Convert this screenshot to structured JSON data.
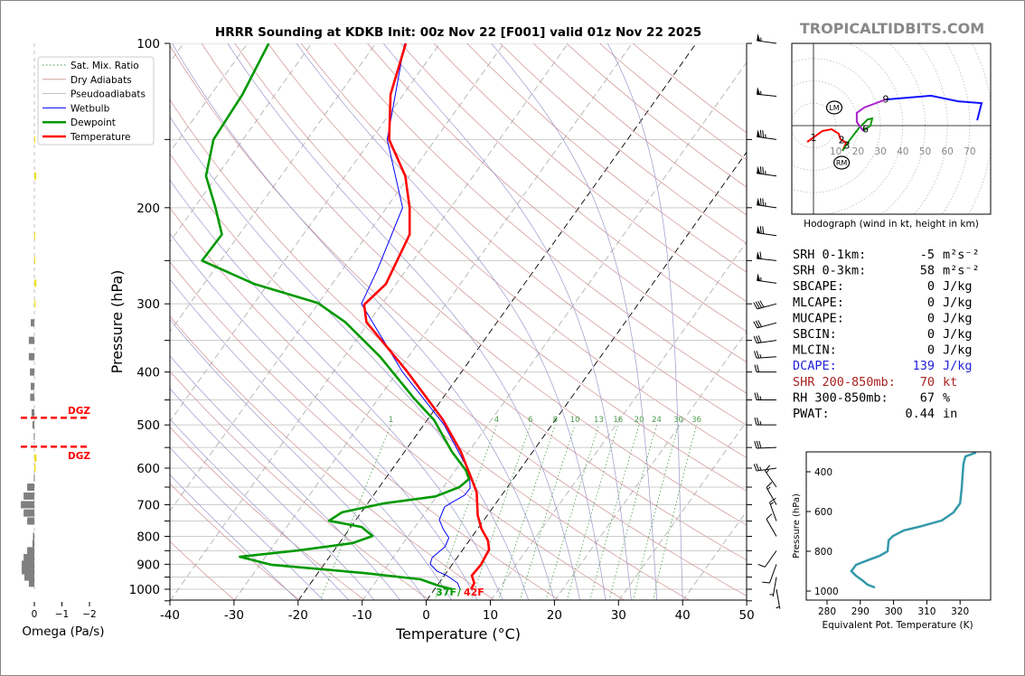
{
  "title": "HRRR Sounding at KDKB Init: 00z Nov 22 [F001] valid 01z Nov 22 2025",
  "watermark": "TROPICALTIDBITS.COM",
  "colors": {
    "temperature": "#ff0000",
    "dewpoint": "#009900",
    "wetbulb": "#0000ff",
    "dry_adiabat": "#d09090",
    "pseudoadiabat": "#9999cc",
    "mixing_ratio": "#4a9a4a",
    "thetae": "#3399aa",
    "dgz": "#ff0000",
    "omega_sink": "#808080",
    "omega_rise": "#f0e020",
    "dcape": "#2222dd",
    "shr": "#aa2222"
  },
  "legend": [
    {
      "label": "Sat. Mix. Ratio",
      "style": "dotted-green"
    },
    {
      "label": "Dry Adiabats",
      "style": "thin-red"
    },
    {
      "label": "Pseudoadiabats",
      "style": "thin-gray"
    },
    {
      "label": "Wetbulb",
      "style": "thin-blue"
    },
    {
      "label": "Dewpoint",
      "style": "thick-green"
    },
    {
      "label": "Temperature",
      "style": "thick-red"
    }
  ],
  "surface_labels": {
    "dewpoint": "37F",
    "temperature": "42F",
    "separator": "/"
  },
  "chart_data": [
    {
      "name": "skew-t",
      "type": "line",
      "title": "HRRR Sounding at KDKB Init: 00z Nov 22 [F001] valid 01z Nov 22 2025",
      "xlabel": "Temperature (°C)",
      "ylabel": "Pressure (hPa)",
      "xlim": [
        -40,
        50
      ],
      "ylim": [
        1050,
        100
      ],
      "yscale": "log",
      "xticks": [
        -40,
        -30,
        -20,
        -10,
        0,
        10,
        20,
        30,
        40,
        50
      ],
      "yticks": [
        100,
        200,
        300,
        400,
        500,
        600,
        700,
        800,
        900,
        1000
      ],
      "mixing_ratio_labels": [
        "1",
        "4",
        "6",
        "8",
        "10",
        "13",
        "16",
        "20",
        "24",
        "30",
        "36"
      ],
      "mixing_ratio_values": [
        1,
        4,
        6,
        8,
        10,
        13,
        16,
        20,
        24,
        30,
        36
      ],
      "highlight_isotherms": [
        -20,
        0
      ],
      "legend_position": "top-left",
      "series": [
        {
          "name": "Temperature",
          "points": [
            [
              100,
              -65.3
            ],
            [
              124,
              -62
            ],
            [
              150,
              -57.2
            ],
            [
              175,
              -50.6
            ],
            [
              200,
              -46.4
            ],
            [
              224,
              -43.4
            ],
            [
              276,
              -41.6
            ],
            [
              301,
              -42.7
            ],
            [
              324,
              -40.4
            ],
            [
              398,
              -28.7
            ],
            [
              490,
              -17.5
            ],
            [
              560,
              -11.2
            ],
            [
              628,
              -6.5
            ],
            [
              665,
              -4.2
            ],
            [
              732,
              -1.5
            ],
            [
              775,
              0.6
            ],
            [
              814,
              2.9
            ],
            [
              846,
              4.1
            ],
            [
              902,
              4.5
            ],
            [
              944,
              4.3
            ],
            [
              974,
              5.5
            ],
            [
              1000,
              5.7
            ]
          ]
        },
        {
          "name": "Dewpoint",
          "points": [
            [
              100,
              -86.7
            ],
            [
              124,
              -85.1
            ],
            [
              150,
              -84.6
            ],
            [
              175,
              -81.7
            ],
            [
              200,
              -76.7
            ],
            [
              224,
              -72.7
            ],
            [
              250,
              -72.9
            ],
            [
              276,
              -62.1
            ],
            [
              299,
              -50.1
            ],
            [
              324,
              -43.7
            ],
            [
              375,
              -34.4
            ],
            [
              446,
              -24.6
            ],
            [
              490,
              -18.9
            ],
            [
              560,
              -12.6
            ],
            [
              605,
              -8.4
            ],
            [
              628,
              -6.9
            ],
            [
              650,
              -7.5
            ],
            [
              676,
              -10.2
            ],
            [
              696,
              -17.4
            ],
            [
              723,
              -23
            ],
            [
              749,
              -24.1
            ],
            [
              769,
              -18.3
            ],
            [
              799,
              -15.6
            ],
            [
              823,
              -17.9
            ],
            [
              849,
              -25.6
            ],
            [
              872,
              -34
            ],
            [
              902,
              -28.2
            ],
            [
              934,
              -12.8
            ],
            [
              959,
              -3.3
            ],
            [
              985,
              0.2
            ],
            [
              1000,
              2.8
            ]
          ]
        },
        {
          "name": "Wetbulb",
          "points": [
            [
              100,
              -65.5
            ],
            [
              150,
              -57.5
            ],
            [
              200,
              -47.5
            ],
            [
              260,
              -44.5
            ],
            [
              300,
              -43.2
            ],
            [
              400,
              -29.2
            ],
            [
              500,
              -16.8
            ],
            [
              600,
              -8.4
            ],
            [
              628,
              -6.8
            ],
            [
              653,
              -5.7
            ],
            [
              673,
              -5.8
            ],
            [
              694,
              -7
            ],
            [
              707,
              -7.6
            ],
            [
              746,
              -7
            ],
            [
              775,
              -5.4
            ],
            [
              805,
              -3.5
            ],
            [
              836,
              -3.1
            ],
            [
              875,
              -3.9
            ],
            [
              899,
              -3.5
            ],
            [
              927,
              -1.6
            ],
            [
              944,
              0.4
            ],
            [
              974,
              2.9
            ],
            [
              1000,
              4
            ]
          ]
        }
      ],
      "wind_barbs": [
        {
          "p": 100,
          "dir": 278,
          "kt": 55
        },
        {
          "p": 125,
          "dir": 276,
          "kt": 55
        },
        {
          "p": 150,
          "dir": 278,
          "kt": 75
        },
        {
          "p": 175,
          "dir": 278,
          "kt": 75
        },
        {
          "p": 200,
          "dir": 278,
          "kt": 75
        },
        {
          "p": 225,
          "dir": 278,
          "kt": 70
        },
        {
          "p": 250,
          "dir": 276,
          "kt": 60
        },
        {
          "p": 275,
          "dir": 278,
          "kt": 55
        },
        {
          "p": 300,
          "dir": 255,
          "kt": 40
        },
        {
          "p": 325,
          "dir": 255,
          "kt": 30
        },
        {
          "p": 350,
          "dir": 262,
          "kt": 30
        },
        {
          "p": 375,
          "dir": 266,
          "kt": 25
        },
        {
          "p": 400,
          "dir": 270,
          "kt": 20
        },
        {
          "p": 450,
          "dir": 270,
          "kt": 25
        },
        {
          "p": 500,
          "dir": 270,
          "kt": 25
        },
        {
          "p": 550,
          "dir": 268,
          "kt": 30
        },
        {
          "p": 600,
          "dir": 262,
          "kt": 25
        },
        {
          "p": 650,
          "dir": 325,
          "kt": 15
        },
        {
          "p": 700,
          "dir": 330,
          "kt": 15
        },
        {
          "p": 750,
          "dir": 340,
          "kt": 15
        },
        {
          "p": 800,
          "dir": 330,
          "kt": 10
        },
        {
          "p": 850,
          "dir": 215,
          "kt": 10
        },
        {
          "p": 900,
          "dir": 200,
          "kt": 10
        },
        {
          "p": 950,
          "dir": 190,
          "kt": 5
        },
        {
          "p": 1000,
          "dir": 170,
          "kt": 5
        }
      ]
    },
    {
      "name": "hodograph",
      "type": "line",
      "xlabel": "Hodograph (wind in kt, height in km)",
      "ring_labels": [
        "10",
        "20",
        "30",
        "40",
        "50",
        "60",
        "70"
      ],
      "ring_values": [
        10,
        20,
        30,
        40,
        50,
        60,
        70,
        80
      ],
      "series": [
        {
          "name": "0-3km",
          "color": "#ff0000",
          "points": [
            [
              -2.8,
              -7.3
            ],
            [
              0,
              -5.3
            ],
            [
              4,
              -2.4
            ],
            [
              8.1,
              -1.6
            ],
            [
              11.3,
              -3.6
            ],
            [
              12.1,
              -6.1
            ],
            [
              14.6,
              -7.7
            ],
            [
              13,
              -11.3
            ]
          ]
        },
        {
          "name": "3-6km",
          "color": "#119911",
          "points": [
            [
              13,
              -11.3
            ],
            [
              16.2,
              -6.5
            ],
            [
              20.2,
              -1.2
            ],
            [
              24.3,
              2.8
            ],
            [
              26.3,
              3.2
            ],
            [
              25.5,
              0
            ],
            [
              22.3,
              -2.4
            ]
          ]
        },
        {
          "name": "6-9km",
          "color": "#aa22cc",
          "points": [
            [
              22.3,
              -2.4
            ],
            [
              19.4,
              1.6
            ],
            [
              19.4,
              5.7
            ],
            [
              22.7,
              8.1
            ],
            [
              32.4,
              11.7
            ]
          ]
        },
        {
          "name": "9+km",
          "color": "#1111ff",
          "points": [
            [
              32.4,
              11.7
            ],
            [
              52.6,
              13.4
            ],
            [
              64.8,
              10.9
            ],
            [
              75.3,
              10.1
            ],
            [
              73.3,
              2.4
            ]
          ]
        }
      ],
      "height_labels": [
        {
          "text": "1",
          "u": 0,
          "v": -5.3
        },
        {
          "text": "2",
          "u": 12.6,
          "v": -6.3
        },
        {
          "text": "3",
          "u": 15,
          "v": -8.8
        },
        {
          "text": "6",
          "u": 23.3,
          "v": -1.5
        },
        {
          "text": "9",
          "u": 32.4,
          "v": 11.9
        }
      ],
      "storm_motion": [
        {
          "text": "LM",
          "u": 9.3,
          "v": 8.1
        },
        {
          "text": "RM",
          "u": 12.6,
          "v": -16.6
        }
      ]
    },
    {
      "name": "theta-e",
      "type": "line",
      "xlabel": "Equivalent Pot. Temperature (K)",
      "ylabel": "Pressure (hPa)",
      "xlim": [
        273.7,
        329.2
      ],
      "ylim": [
        1045,
        300
      ],
      "xticks": [
        280,
        290,
        300,
        310,
        320
      ],
      "yticks": [
        400,
        600,
        800,
        1000
      ],
      "series": [
        {
          "name": "Theta-E",
          "points": [
            [
              303,
              324.8
            ],
            [
              323,
              321.6
            ],
            [
              359,
              321
            ],
            [
              482,
              320.5
            ],
            [
              559,
              320
            ],
            [
              605,
              318
            ],
            [
              645,
              314.5
            ],
            [
              673,
              308.5
            ],
            [
              695,
              303.1
            ],
            [
              723,
              299.8
            ],
            [
              745,
              298.5
            ],
            [
              800,
              298.2
            ],
            [
              823,
              295.8
            ],
            [
              845,
              292.2
            ],
            [
              868,
              288.7
            ],
            [
              900,
              287.3
            ],
            [
              923,
              288.7
            ],
            [
              950,
              290.9
            ],
            [
              968,
              292.2
            ],
            [
              982,
              294.4
            ]
          ]
        }
      ]
    },
    {
      "name": "omega",
      "type": "bar",
      "xlabel": "Omega (Pa/s)",
      "xticks": [
        0,
        -1,
        -2
      ],
      "xtick_labels": [
        "0",
        "−1",
        "−2"
      ],
      "dgz_label": "DGZ",
      "dgz_pressures": [
        485,
        548
      ],
      "bars": [
        [
          150,
          -0.03
        ],
        [
          175,
          -0.07
        ],
        [
          225,
          -0.01
        ],
        [
          250,
          -0.03
        ],
        [
          275,
          -0.07
        ],
        [
          300,
          -0.04
        ],
        [
          325,
          0.13
        ],
        [
          350,
          0.2
        ],
        [
          375,
          0.2
        ],
        [
          400,
          0.16
        ],
        [
          425,
          0.13
        ],
        [
          445,
          0.15
        ],
        [
          475,
          0.1
        ],
        [
          500,
          0.07
        ],
        [
          525,
          0.02
        ],
        [
          575,
          -0.08
        ],
        [
          600,
          -0.05
        ],
        [
          625,
          0.02
        ],
        [
          650,
          0.26
        ],
        [
          675,
          0.39
        ],
        [
          700,
          0.49
        ],
        [
          725,
          0.39
        ],
        [
          750,
          0.26
        ],
        [
          800,
          0.05
        ],
        [
          825,
          0.07
        ],
        [
          850,
          0.26
        ],
        [
          875,
          0.39
        ],
        [
          900,
          0.46
        ],
        [
          925,
          0.46
        ],
        [
          950,
          0.36
        ],
        [
          975,
          0.2
        ]
      ]
    }
  ],
  "indices": [
    {
      "label": "SRH 0-1km:",
      "value": "-5",
      "unit": "m²s⁻²",
      "color": "#000000"
    },
    {
      "label": "SRH 0-3km:",
      "value": "58",
      "unit": "m²s⁻²",
      "color": "#000000"
    },
    {
      "label": "SBCAPE:",
      "value": "0",
      "unit": "J/kg",
      "color": "#000000"
    },
    {
      "label": "MLCAPE:",
      "value": "0",
      "unit": "J/kg",
      "color": "#000000"
    },
    {
      "label": "MUCAPE:",
      "value": "0",
      "unit": "J/kg",
      "color": "#000000"
    },
    {
      "label": "SBCIN:",
      "value": "0",
      "unit": "J/kg",
      "color": "#000000"
    },
    {
      "label": "MLCIN:",
      "value": "0",
      "unit": "J/kg",
      "color": "#000000"
    },
    {
      "label": "DCAPE:",
      "value": "139",
      "unit": "J/kg",
      "color": "#2222dd"
    },
    {
      "label": "SHR 200-850mb:",
      "value": "70",
      "unit": "kt",
      "color": "#aa2222"
    },
    {
      "label": "RH 300-850mb:",
      "value": "67",
      "unit": "%",
      "color": "#000000"
    },
    {
      "label": "PWAT:",
      "value": "0.44",
      "unit": "in",
      "color": "#000000"
    }
  ]
}
